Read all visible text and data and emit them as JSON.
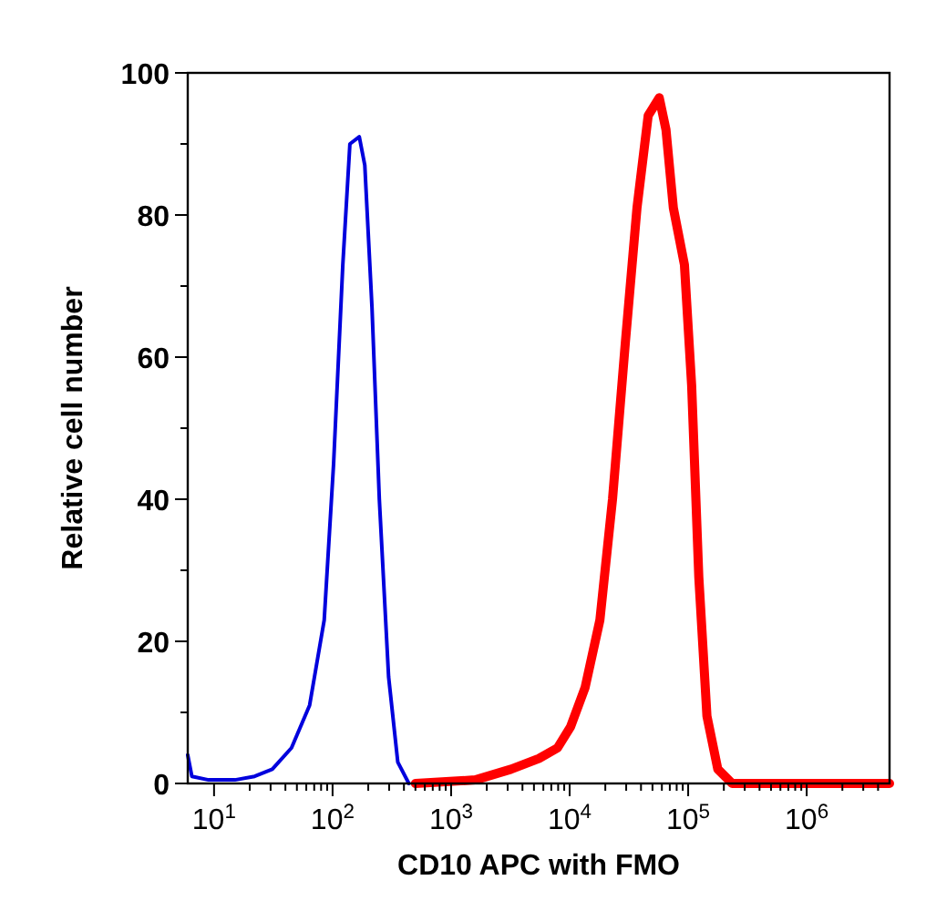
{
  "chart_data": {
    "type": "line",
    "xlabel": "CD10 APC with FMO",
    "ylabel": "Relative cell number",
    "log": "x",
    "grid": false,
    "marker": "none",
    "line_style": "solid",
    "xlim": [
      6,
      5000000
    ],
    "ylim": [
      0,
      100
    ],
    "xticks": [
      {
        "value": 10,
        "label": "10$^{1}$"
      },
      {
        "value": 20,
        "label": null
      },
      {
        "value": 30,
        "label": null
      },
      {
        "value": 40,
        "label": null
      },
      {
        "value": 50,
        "label": null
      },
      {
        "value": 60,
        "label": null
      },
      {
        "value": 70,
        "label": null
      },
      {
        "value": 80,
        "label": null
      },
      {
        "value": 90,
        "label": null
      },
      {
        "value": 100,
        "label": "10$^{2}$"
      },
      {
        "value": 200,
        "label": null
      },
      {
        "value": 300,
        "label": null
      },
      {
        "value": 400,
        "label": null
      },
      {
        "value": 500,
        "label": null
      },
      {
        "value": 600,
        "label": null
      },
      {
        "value": 700,
        "label": null
      },
      {
        "value": 800,
        "label": null
      },
      {
        "value": 900,
        "label": null
      },
      {
        "value": 1000,
        "label": "10$^{3}$"
      },
      {
        "value": 2000,
        "label": null
      },
      {
        "value": 3000,
        "label": null
      },
      {
        "value": 4000,
        "label": null
      },
      {
        "value": 5000,
        "label": null
      },
      {
        "value": 6000,
        "label": null
      },
      {
        "value": 7000,
        "label": null
      },
      {
        "value": 8000,
        "label": null
      },
      {
        "value": 9000,
        "label": null
      },
      {
        "value": 10000,
        "label": "10$^{4}$"
      },
      {
        "value": 20000,
        "label": null
      },
      {
        "value": 30000,
        "label": null
      },
      {
        "value": 40000,
        "label": null
      },
      {
        "value": 50000,
        "label": null
      },
      {
        "value": 60000,
        "label": null
      },
      {
        "value": 70000,
        "label": null
      },
      {
        "value": 80000,
        "label": null
      },
      {
        "value": 90000,
        "label": null
      },
      {
        "value": 100000,
        "label": "10$^{5}$"
      },
      {
        "value": 200000,
        "label": null
      },
      {
        "value": 300000,
        "label": null
      },
      {
        "value": 400000,
        "label": null
      },
      {
        "value": 500000,
        "label": null
      },
      {
        "value": 600000,
        "label": null
      },
      {
        "value": 700000,
        "label": null
      },
      {
        "value": 800000,
        "label": null
      },
      {
        "value": 900000,
        "label": null
      },
      {
        "value": 1000000,
        "label": "10$^{6}$"
      },
      {
        "value": 2000000,
        "label": null
      },
      {
        "value": 3000000,
        "label": null
      },
      {
        "value": 4000000,
        "label": null
      }
    ],
    "yticks": [
      0,
      {
        "value": 10,
        "label": null
      },
      20,
      {
        "value": 30,
        "label": null
      },
      40,
      {
        "value": 50,
        "label": null
      },
      60,
      {
        "value": 70,
        "label": null
      },
      80,
      {
        "value": 90,
        "label": null
      },
      100
    ],
    "series": [
      {
        "color": "#0000dd",
        "x": [
          6,
          6.5,
          9,
          15,
          22,
          31,
          45,
          64,
          85,
          102,
          122,
          140,
          168,
          187,
          215,
          248,
          297,
          355,
          440
        ],
        "values": [
          4,
          1,
          0.5,
          0.5,
          1,
          2,
          5,
          11,
          23,
          45,
          73,
          90,
          91,
          87,
          67,
          40,
          15,
          3,
          0
        ]
      },
      {
        "color": "#ff0000",
        "x": [
          500,
          1600,
          3200,
          5500,
          7900,
          10200,
          13500,
          18000,
          23000,
          29500,
          37000,
          46000,
          57000,
          65000,
          75000,
          93000,
          107000,
          123000,
          144000,
          178000,
          235000,
          5000000
        ],
        "values": [
          0,
          0.5,
          2,
          3.5,
          5,
          8,
          13.5,
          23,
          40,
          62,
          81,
          94,
          96.5,
          92,
          81,
          73,
          56,
          29,
          9.5,
          2,
          0,
          0
        ]
      }
    ]
  }
}
